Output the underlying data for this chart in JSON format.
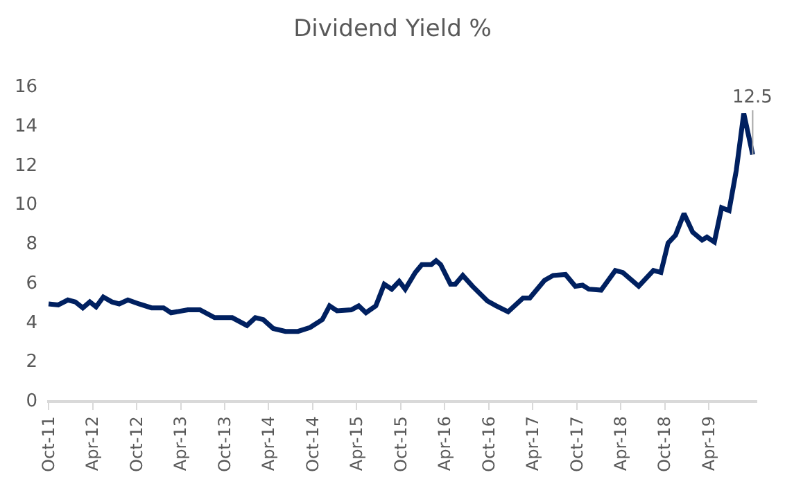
{
  "chart_data": {
    "type": "line",
    "title": "Dividend Yield %",
    "x": [
      "2011-10-01",
      "2011-11-10",
      "2011-12-20",
      "2012-01-20",
      "2012-02-20",
      "2012-03-20",
      "2012-04-15",
      "2012-05-15",
      "2012-06-20",
      "2012-07-20",
      "2012-08-25",
      "2012-10-10",
      "2012-12-01",
      "2013-01-20",
      "2013-02-20",
      "2013-05-01",
      "2013-06-20",
      "2013-08-20",
      "2013-11-01",
      "2014-01-01",
      "2014-02-05",
      "2014-03-10",
      "2014-04-20",
      "2014-06-10",
      "2014-08-01",
      "2014-09-20",
      "2014-11-10",
      "2014-12-10",
      "2015-01-10",
      "2015-03-10",
      "2015-04-10",
      "2015-05-10",
      "2015-06-20",
      "2015-07-25",
      "2015-08-25",
      "2015-09-25",
      "2015-10-20",
      "2015-12-01",
      "2015-12-28",
      "2016-02-05",
      "2016-02-25",
      "2016-03-15",
      "2016-04-25",
      "2016-05-15",
      "2016-06-15",
      "2016-07-25",
      "2016-09-25",
      "2016-11-01",
      "2016-12-20",
      "2017-02-20",
      "2017-03-20",
      "2017-05-20",
      "2017-06-25",
      "2017-08-15",
      "2017-09-25",
      "2017-10-25",
      "2017-11-20",
      "2018-01-10",
      "2018-03-10",
      "2018-04-10",
      "2018-06-15",
      "2018-08-15",
      "2018-09-15",
      "2018-10-15",
      "2018-11-15",
      "2018-12-20",
      "2019-01-25",
      "2019-03-05",
      "2019-03-25",
      "2019-04-25",
      "2019-05-25",
      "2019-06-25",
      "2019-07-25",
      "2019-08-25",
      "2019-10-01"
    ],
    "series": [
      {
        "color": "#002060",
        "values": [
          4.9,
          4.85,
          5.1,
          5.0,
          4.7,
          5.0,
          4.75,
          5.25,
          5.0,
          4.9,
          5.1,
          4.9,
          4.7,
          4.7,
          4.45,
          4.6,
          4.6,
          4.2,
          4.2,
          3.8,
          4.2,
          4.1,
          3.65,
          3.5,
          3.5,
          3.7,
          4.1,
          4.8,
          4.55,
          4.6,
          4.8,
          4.45,
          4.8,
          5.9,
          5.65,
          6.05,
          5.65,
          6.5,
          6.9,
          6.9,
          7.1,
          6.9,
          5.9,
          5.9,
          6.35,
          5.8,
          5.05,
          4.8,
          4.5,
          5.2,
          5.2,
          6.1,
          6.35,
          6.4,
          5.8,
          5.85,
          5.65,
          5.6,
          6.6,
          6.5,
          5.8,
          6.6,
          6.5,
          8.0,
          8.4,
          9.5,
          8.55,
          8.15,
          8.3,
          8.05,
          9.8,
          9.65,
          11.7,
          14.6,
          12.5
        ]
      }
    ],
    "xlim": [
      "2011-09-25",
      "2019-10-20"
    ],
    "xticks": [
      {
        "value": "2011-10-01",
        "label": "Oct-11"
      },
      {
        "value": "2012-04-01",
        "label": "Apr-12"
      },
      {
        "value": "2012-10-01",
        "label": "Oct-12"
      },
      {
        "value": "2013-04-01",
        "label": "Apr-13"
      },
      {
        "value": "2013-10-01",
        "label": "Oct-13"
      },
      {
        "value": "2014-04-01",
        "label": "Apr-14"
      },
      {
        "value": "2014-10-01",
        "label": "Oct-14"
      },
      {
        "value": "2015-04-01",
        "label": "Apr-15"
      },
      {
        "value": "2015-10-01",
        "label": "Oct-15"
      },
      {
        "value": "2016-04-01",
        "label": "Apr-16"
      },
      {
        "value": "2016-10-01",
        "label": "Oct-16"
      },
      {
        "value": "2017-04-01",
        "label": "Apr-17"
      },
      {
        "value": "2017-10-01",
        "label": "Oct-17"
      },
      {
        "value": "2018-04-01",
        "label": "Apr-18"
      },
      {
        "value": "2018-10-01",
        "label": "Oct-18"
      },
      {
        "value": "2019-04-01",
        "label": "Apr-19"
      }
    ],
    "ylim": [
      0,
      16
    ],
    "yticks": [
      0,
      2,
      4,
      6,
      8,
      10,
      12,
      14,
      16
    ],
    "marker": "none",
    "line_style": "solid",
    "annotations": [
      {
        "text": "12.5",
        "x": "2019-10-01",
        "y": 12.5
      }
    ]
  }
}
